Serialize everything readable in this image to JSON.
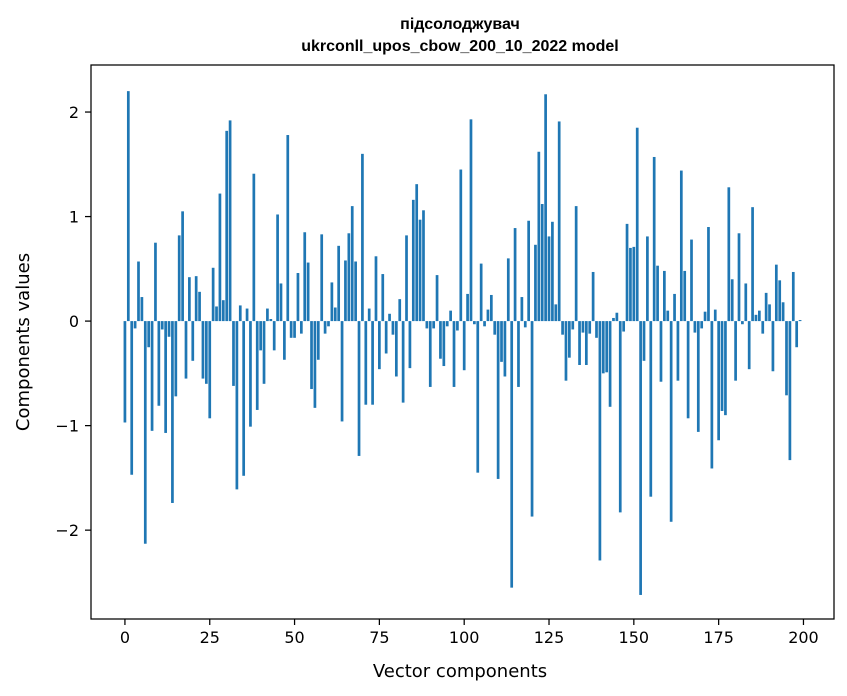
{
  "chart_data": {
    "type": "bar",
    "title_line1": "підсолоджувач",
    "title_line2": "ukrconll_upos_cbow_200_10_2022 model",
    "xlabel": "Vector components",
    "ylabel": "Components values",
    "xlim": [
      -10,
      209
    ],
    "ylim": [
      -2.85,
      2.45
    ],
    "xticks": [
      0,
      25,
      50,
      75,
      100,
      125,
      150,
      175,
      200
    ],
    "yticks": [
      -2,
      -1,
      0,
      1,
      2
    ],
    "grid": false,
    "bar_color": "#1f77b4",
    "values": [
      -0.97,
      2.2,
      -1.47,
      -0.07,
      0.57,
      0.23,
      -2.13,
      -0.25,
      -1.05,
      0.75,
      -0.81,
      -0.08,
      -1.07,
      -0.15,
      -1.74,
      -0.72,
      0.82,
      1.05,
      -0.55,
      0.42,
      -0.38,
      0.43,
      0.28,
      -0.55,
      -0.6,
      -0.93,
      0.51,
      0.14,
      1.22,
      0.2,
      1.82,
      1.92,
      -0.62,
      -1.61,
      0.15,
      -1.48,
      0.12,
      -1.01,
      1.41,
      -0.85,
      -0.28,
      -0.6,
      0.12,
      0.02,
      -0.28,
      1.02,
      0.36,
      -0.37,
      1.78,
      -0.16,
      -0.16,
      0.46,
      -0.12,
      0.85,
      0.56,
      -0.65,
      -0.83,
      -0.37,
      0.83,
      -0.12,
      -0.05,
      0.37,
      0.13,
      0.72,
      -0.96,
      0.58,
      0.84,
      1.1,
      0.57,
      -1.29,
      1.6,
      -0.8,
      0.12,
      -0.8,
      0.62,
      -0.46,
      0.45,
      -0.31,
      0.07,
      -0.13,
      -0.53,
      0.21,
      -0.78,
      0.82,
      -0.45,
      1.16,
      1.31,
      0.97,
      1.06,
      -0.07,
      -0.63,
      -0.07,
      0.44,
      -0.36,
      -0.43,
      -0.05,
      0.1,
      -0.63,
      -0.09,
      1.45,
      -0.47,
      0.26,
      1.93,
      -0.03,
      -1.45,
      0.55,
      -0.05,
      0.11,
      0.25,
      -0.13,
      -1.51,
      -0.39,
      -0.53,
      0.6,
      -2.55,
      0.89,
      -0.63,
      0.23,
      -0.06,
      0.96,
      -1.87,
      0.73,
      1.62,
      1.12,
      2.17,
      0.81,
      0.95,
      0.16,
      1.91,
      -0.13,
      -0.57,
      -0.35,
      -0.08,
      1.1,
      -0.42,
      -0.11,
      -0.42,
      -0.12,
      0.47,
      -0.16,
      -2.29,
      -0.5,
      -0.49,
      -0.82,
      0.03,
      0.08,
      -1.83,
      -0.1,
      0.93,
      0.7,
      0.71,
      1.85,
      -2.62,
      -0.38,
      0.81,
      -1.68,
      1.57,
      0.53,
      -0.58,
      0.48,
      0.1,
      -1.92,
      0.26,
      -0.57,
      1.44,
      0.48,
      -0.93,
      0.78,
      -0.11,
      -1.06,
      -0.07,
      0.09,
      0.9,
      -1.41,
      0.11,
      -1.14,
      -0.86,
      -0.9,
      1.28,
      0.4,
      -0.57,
      0.84,
      -0.03,
      0.36,
      -0.46,
      1.09,
      0.06,
      0.1,
      -0.12,
      0.27,
      0.16,
      -0.48,
      0.54,
      0.39,
      0.18,
      -0.71,
      -1.33,
      0.47,
      -0.25,
      0.01
    ]
  }
}
